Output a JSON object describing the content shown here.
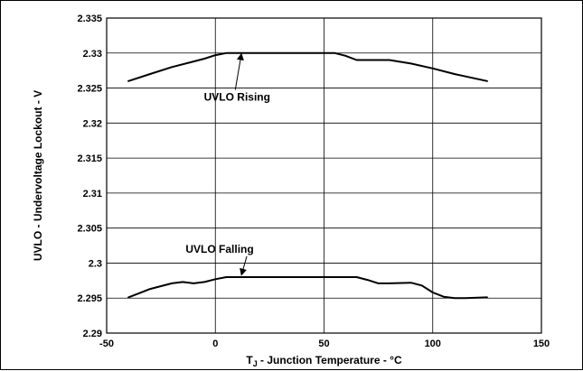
{
  "chart_data": {
    "type": "line",
    "title": "",
    "xlabel": "T_J - Junction Temperature - °C",
    "xlabel_main": "T",
    "xlabel_sub": "J",
    "xlabel_rest": " - Junction Temperature - °C",
    "ylabel": "UVLO - Undervoltage Lockout - V",
    "xlim": [
      -50,
      150
    ],
    "ylim": [
      2.29,
      2.335
    ],
    "xticks": [
      "-50",
      "0",
      "50",
      "100",
      "150"
    ],
    "yticks": [
      "2.29",
      "2.295",
      "2.3",
      "2.305",
      "2.31",
      "2.315",
      "2.32",
      "2.325",
      "2.33",
      "2.335"
    ],
    "grid": true,
    "series": [
      {
        "name": "UVLO Rising",
        "x": [
          -40,
          -30,
          -20,
          -10,
          -5,
          0,
          5,
          10,
          20,
          30,
          40,
          50,
          55,
          60,
          65,
          70,
          80,
          90,
          100,
          110,
          125
        ],
        "y": [
          2.326,
          2.327,
          2.328,
          2.3288,
          2.3292,
          2.3297,
          2.33,
          2.33,
          2.33,
          2.33,
          2.33,
          2.33,
          2.33,
          2.3296,
          2.329,
          2.329,
          2.329,
          2.3285,
          2.3278,
          2.327,
          2.326
        ]
      },
      {
        "name": "UVLO Falling",
        "x": [
          -40,
          -35,
          -30,
          -25,
          -20,
          -15,
          -10,
          -5,
          0,
          5,
          10,
          20,
          30,
          40,
          50,
          60,
          65,
          70,
          75,
          80,
          90,
          95,
          100,
          105,
          110,
          115,
          125
        ],
        "y": [
          2.2951,
          2.2957,
          2.2963,
          2.2967,
          2.2971,
          2.2973,
          2.2971,
          2.2973,
          2.2977,
          2.298,
          2.298,
          2.298,
          2.298,
          2.298,
          2.298,
          2.298,
          2.298,
          2.2976,
          2.2971,
          2.2971,
          2.2972,
          2.2968,
          2.2958,
          2.2952,
          2.295,
          2.295,
          2.2951
        ]
      }
    ],
    "annotations": [
      {
        "text": "UVLO Rising",
        "text_x": 10,
        "text_y": 2.3232,
        "tip_x": 12,
        "tip_y": 2.3299
      },
      {
        "text": "UVLO Falling",
        "text_x": 2,
        "text_y": 2.3015,
        "tip_x": 12,
        "tip_y": 2.2983
      }
    ]
  }
}
